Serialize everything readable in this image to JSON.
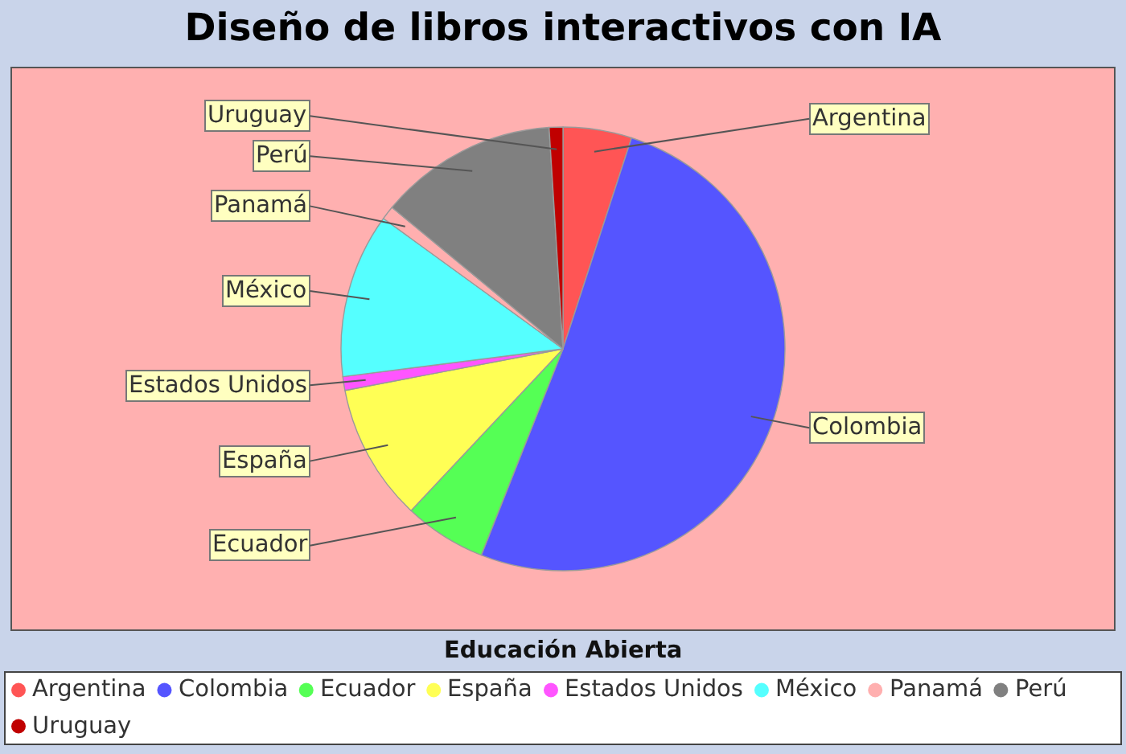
{
  "chart_data": {
    "type": "pie",
    "title": "Diseño de libros interactivos con IA",
    "legend_title": "Educación Abierta",
    "categories": [
      "Argentina",
      "Colombia",
      "Ecuador",
      "España",
      "Estados Unidos",
      "México",
      "Panamá",
      "Perú",
      "Uruguay"
    ],
    "values": [
      5,
      51,
      6,
      10,
      1,
      12,
      1,
      13,
      1
    ],
    "colors": [
      "#ff5555",
      "#5555ff",
      "#55ff55",
      "#ffff55",
      "#ff55ff",
      "#55ffff",
      "#ffafaf",
      "#808080",
      "#c00000"
    ],
    "legend": "bottom"
  }
}
